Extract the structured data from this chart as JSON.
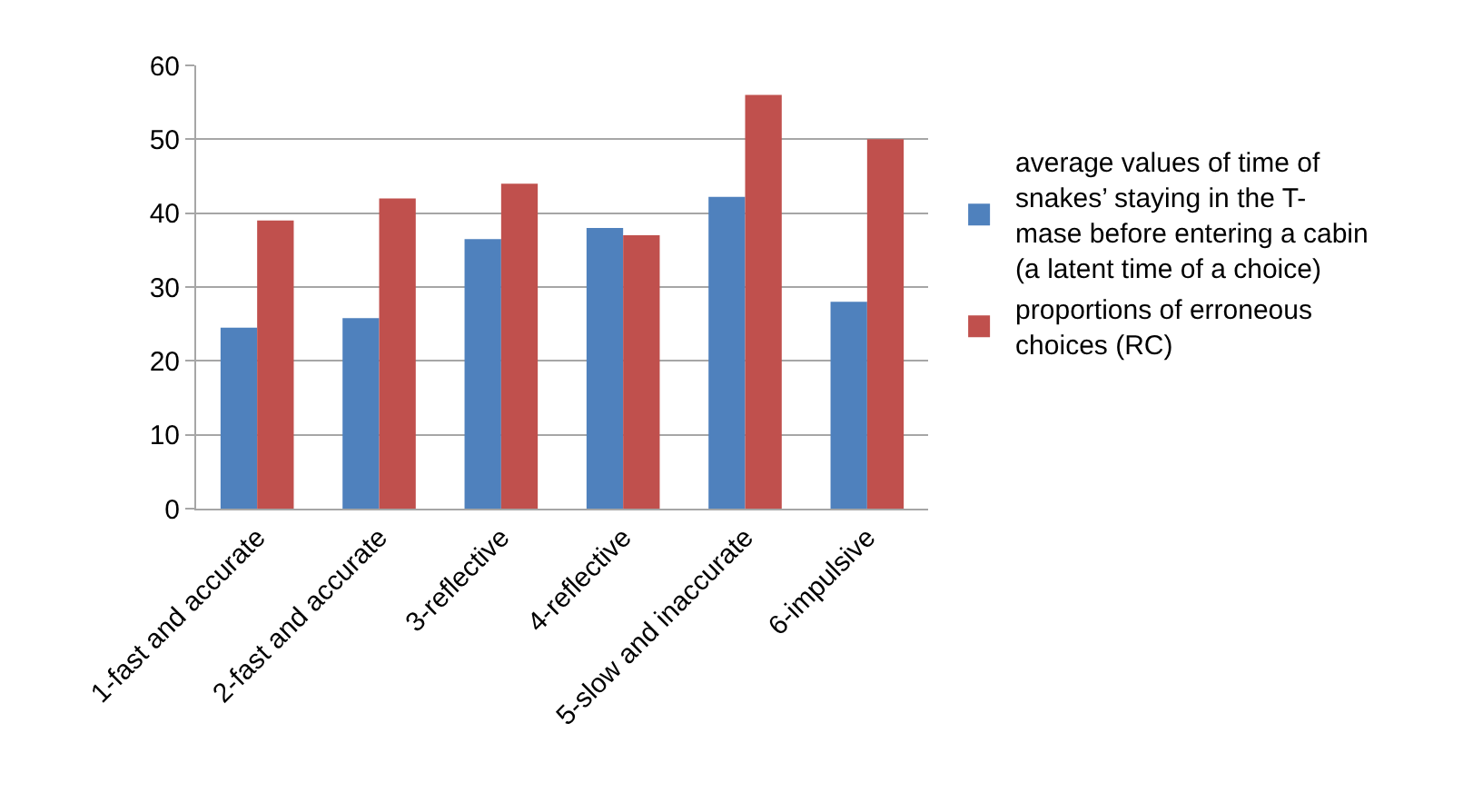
{
  "chart_data": {
    "type": "bar",
    "categories": [
      "1-fast and accurate",
      "2-fast and accurate",
      "3-reflective",
      "4-reflective",
      "5-slow and inaccurate",
      "6-impulsive"
    ],
    "series": [
      {
        "name": "average values of time of snakes’ staying in the T-mase before entering a cabin  (a latent time of a choice)",
        "color": "#4f81bd",
        "values": [
          24.5,
          25.8,
          36.5,
          38,
          42.2,
          28
        ]
      },
      {
        "name": "proportions of erroneous choices (RC)",
        "color": "#c0504d",
        "values": [
          39,
          42,
          44,
          37,
          56,
          50
        ]
      }
    ],
    "ylim": [
      0,
      60
    ],
    "yticks": [
      0,
      10,
      20,
      30,
      40,
      50,
      60
    ],
    "grid": "y",
    "legend": "right"
  }
}
